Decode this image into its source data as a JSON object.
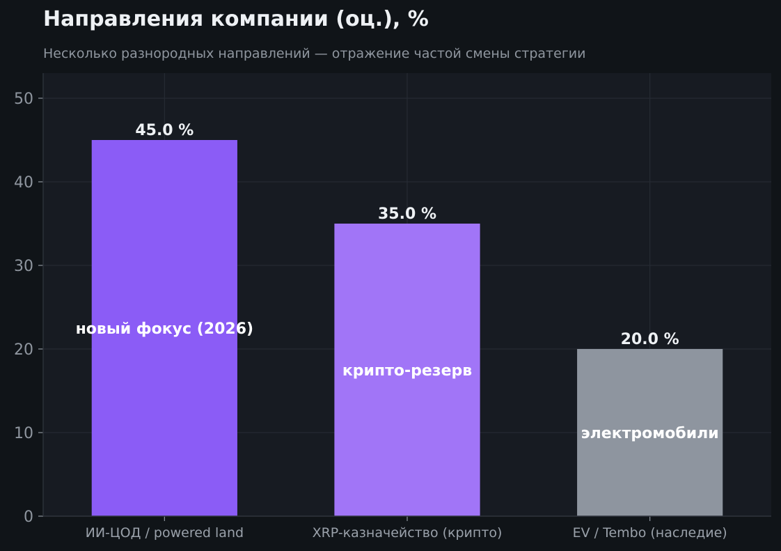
{
  "chart_data": {
    "type": "bar",
    "title": "Направления компании (оц.), %",
    "subtitle": "Несколько разнородных направлений — отражение частой смены стратегии",
    "xlabel": "",
    "ylabel": "",
    "categories": [
      "ИИ-ЦОД / powered land",
      "XRP-казначейство (крипто)",
      "EV / Tembo (наследие)"
    ],
    "values": [
      45.0,
      35.0,
      20.0
    ],
    "value_labels": [
      "45.0 %",
      "35.0 %",
      "20.0 %"
    ],
    "bar_annotations": [
      "новый фокус (2026)",
      "крипто-резерв",
      "электромобили"
    ],
    "colors": [
      "#8b5cf6",
      "#a175f7",
      "#8e959f"
    ],
    "ylim": [
      0,
      53
    ],
    "yticks": [
      0,
      10,
      20,
      30,
      40,
      50
    ],
    "grid": true,
    "legend": "none"
  }
}
